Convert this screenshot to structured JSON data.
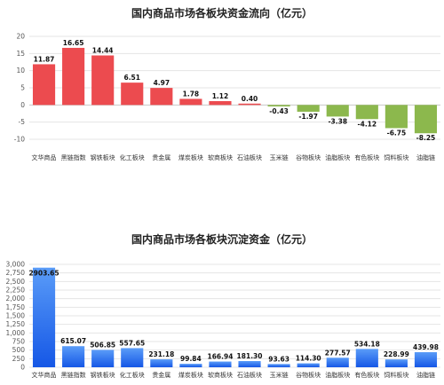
{
  "chart_data": [
    {
      "type": "bar",
      "title": "国内商品市场各板块资金流向（亿元）",
      "categories": [
        "文华商品",
        "黑链指数",
        "钢铁板块",
        "化工板块",
        "贵金属",
        "煤炭板块",
        "软商板块",
        "石油板块",
        "玉米链",
        "谷物板块",
        "油脂板块",
        "有色板块",
        "饲料板块",
        "油脂链"
      ],
      "values": [
        11.87,
        16.65,
        14.44,
        6.51,
        4.97,
        1.78,
        1.12,
        0.4,
        -0.43,
        -1.97,
        -3.38,
        -4.12,
        -6.75,
        -8.25
      ],
      "value_labels": [
        "11.87",
        "16.65",
        "14.44",
        "6.51",
        "4.97",
        "1.78",
        "1.12",
        "0.40",
        "-0.43",
        "-1.97",
        "-3.38",
        "-4.12",
        "-6.75",
        "-8.25"
      ],
      "yticks": [
        -10,
        -5,
        0,
        5,
        10,
        15,
        20
      ],
      "ylim": [
        -10,
        20
      ],
      "grid": true,
      "colors": {
        "positive": "#ec4b4f",
        "negative": "#8cb84d"
      }
    },
    {
      "type": "bar",
      "title": "国内商品市场各板块沉淀资金（亿元）",
      "categories": [
        "文华商品",
        "黑链指数",
        "钢铁板块",
        "化工板块",
        "贵金属",
        "煤炭板块",
        "软商板块",
        "石油板块",
        "玉米链",
        "谷物板块",
        "油脂板块",
        "有色板块",
        "饲料板块",
        "油脂链"
      ],
      "values": [
        2903.65,
        615.07,
        506.85,
        557.65,
        231.18,
        99.84,
        166.94,
        181.3,
        93.63,
        114.3,
        277.57,
        534.18,
        228.99,
        439.98
      ],
      "value_labels": [
        "2903.65",
        "615.07",
        "506.85",
        "557.65",
        "231.18",
        "99.84",
        "166.94",
        "181.30",
        "93.63",
        "114.30",
        "277.57",
        "534.18",
        "228.99",
        "439.98"
      ],
      "yticks": [
        0,
        250,
        500,
        750,
        1000,
        1250,
        1500,
        1750,
        2000,
        2250,
        2500,
        2750,
        3000
      ],
      "ytick_labels": [
        "0",
        "250",
        "500",
        "750",
        "1,000",
        "1,250",
        "1,500",
        "1,750",
        "2,000",
        "2,250",
        "2,500",
        "2,750",
        "3,000"
      ],
      "ylim": [
        0,
        3000
      ],
      "grid": true,
      "colors": {
        "bar_top": "#5a9cf8",
        "bar_bottom": "#1557e6"
      }
    }
  ]
}
